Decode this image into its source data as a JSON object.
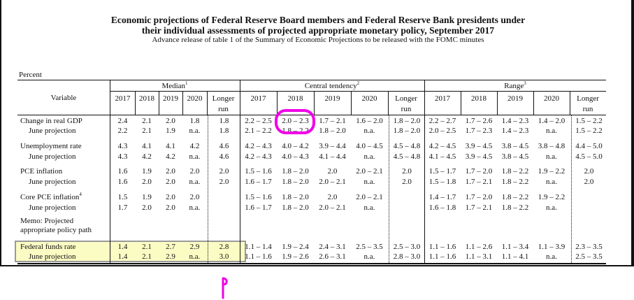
{
  "title_line1": "Economic projections of Federal Reserve Board members and Federal Reserve Bank presidents under",
  "title_line2": "their individual assessments of projected appropriate monetary policy, September 2017",
  "subtitle": "Advance release of table 1 of the Summary of Economic Projections to be released with the FOMC minutes",
  "percent_label": "Percent",
  "group_headers": {
    "median": "Median",
    "median_sup": "1",
    "central": "Central tendency",
    "central_sup": "2",
    "range": "Range",
    "range_sup": "3"
  },
  "variable_header": "Variable",
  "year_headers": [
    "2017",
    "2018",
    "2019",
    "2020",
    "Longer",
    "run"
  ],
  "rows": [
    {
      "label": "Change in real GDP",
      "sup": "",
      "median": [
        "2.4",
        "2.1",
        "2.0",
        "1.8",
        "1.8"
      ],
      "central": [
        "2.2 – 2.5",
        "2.0 – 2.3",
        "1.7 – 2.1",
        "1.6 – 2.0",
        "1.8 – 2.0"
      ],
      "range": [
        "2.2 – 2.7",
        "1.7 – 2.6",
        "1.4 – 2.3",
        "1.4 – 2.0",
        "1.5 – 2.2"
      ]
    },
    {
      "label": "June projection",
      "sup": "",
      "median": [
        "2.2",
        "2.1",
        "1.9",
        "n.a.",
        "1.8"
      ],
      "central": [
        "2.1 – 2.2",
        "1.8 – 2.2",
        "1.8 – 2.0",
        "n.a.",
        "1.8 – 2.0"
      ],
      "range": [
        "2.0 – 2.5",
        "1.7 – 2.3",
        "1.4 – 2.3",
        "n.a.",
        "1.5 – 2.2"
      ]
    },
    {
      "label": "Unemployment rate",
      "sup": "",
      "median": [
        "4.3",
        "4.1",
        "4.1",
        "4.2",
        "4.6"
      ],
      "central": [
        "4.2 – 4.3",
        "4.0 – 4.2",
        "3.9 – 4.4",
        "4.0 – 4.5",
        "4.5 – 4.8"
      ],
      "range": [
        "4.2 – 4.5",
        "3.9 – 4.5",
        "3.8 – 4.5",
        "3.8 – 4.8",
        "4.4 – 5.0"
      ]
    },
    {
      "label": "June projection",
      "sup": "",
      "median": [
        "4.3",
        "4.2",
        "4.2",
        "n.a.",
        "4.6"
      ],
      "central": [
        "4.2 – 4.3",
        "4.0 – 4.3",
        "4.1 – 4.4",
        "n.a.",
        "4.5 – 4.8"
      ],
      "range": [
        "4.1 – 4.5",
        "3.9 – 4.5",
        "3.8 – 4.5",
        "n.a.",
        "4.5 – 5.0"
      ]
    },
    {
      "label": "PCE inflation",
      "sup": "",
      "median": [
        "1.6",
        "1.9",
        "2.0",
        "2.0",
        "2.0"
      ],
      "central": [
        "1.5 – 1.6",
        "1.8 – 2.0",
        "2.0",
        "2.0 – 2.1",
        "2.0"
      ],
      "range": [
        "1.5 – 1.7",
        "1.7 – 2.0",
        "1.8 – 2.2",
        "1.9 – 2.2",
        "2.0"
      ]
    },
    {
      "label": "June projection",
      "sup": "",
      "median": [
        "1.6",
        "2.0",
        "2.0",
        "n.a.",
        "2.0"
      ],
      "central": [
        "1.6 – 1.7",
        "1.8 – 2.0",
        "2.0 – 2.1",
        "n.a.",
        "2.0"
      ],
      "range": [
        "1.5 – 1.8",
        "1.7 – 2.1",
        "1.8 – 2.2",
        "n.a.",
        "2.0"
      ]
    },
    {
      "label": "Core PCE inflation",
      "sup": "4",
      "median": [
        "1.5",
        "1.9",
        "2.0",
        "2.0",
        ""
      ],
      "central": [
        "1.5 – 1.6",
        "1.8 – 2.0",
        "2.0",
        "2.0 – 2.1",
        ""
      ],
      "range": [
        "1.4 – 1.7",
        "1.7 – 2.0",
        "1.8 – 2.2",
        "1.9 – 2.2",
        ""
      ]
    },
    {
      "label": "June projection",
      "sup": "",
      "median": [
        "1.7",
        "2.0",
        "2.0",
        "n.a.",
        ""
      ],
      "central": [
        "1.6 – 1.7",
        "1.8 – 2.0",
        "2.0 – 2.1",
        "n.a.",
        ""
      ],
      "range": [
        "1.6 – 1.8",
        "1.7 – 2.1",
        "1.8 – 2.2",
        "n.a.",
        ""
      ]
    },
    {
      "label": "Federal funds rate",
      "sup": "",
      "median": [
        "1.4",
        "2.1",
        "2.7",
        "2.9",
        "2.8"
      ],
      "central": [
        "1.1 – 1.4",
        "1.9 – 2.4",
        "2.4 – 3.1",
        "2.5 – 3.5",
        "2.5 – 3.0"
      ],
      "range": [
        "1.1 – 1.6",
        "1.1 – 2.6",
        "1.1 – 3.4",
        "1.1 – 3.9",
        "2.3 – 3.5"
      ]
    },
    {
      "label": "June projection",
      "sup": "",
      "median": [
        "1.4",
        "2.1",
        "2.9",
        "n.a.",
        "3.0"
      ],
      "central": [
        "1.1 – 1.6",
        "1.9 – 2.6",
        "2.6 – 3.1",
        "n.a.",
        "2.8 – 3.0"
      ],
      "range": [
        "1.1 – 1.6",
        "1.1 – 3.1",
        "1.1 – 4.1",
        "n.a.",
        "2.5 – 3.5"
      ]
    }
  ],
  "memo_line1": "Memo: Projected",
  "memo_line2": "appropriate policy path",
  "annotation_colors": {
    "circle": "#f000e8",
    "highlight_fill": "#fbfbc4",
    "highlight_border": "#9a9a9a"
  }
}
